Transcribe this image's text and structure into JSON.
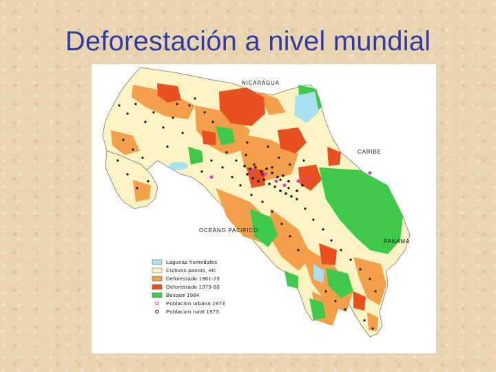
{
  "slide": {
    "title": "Deforestación a nivel mundial"
  },
  "map": {
    "labels": {
      "north": "NICARAGUA",
      "east": "CARIBE",
      "southwest": "OCEANO PACIFICO",
      "southeast": "PANAMA"
    },
    "legend": [
      {
        "label": "Lagunas humedales",
        "color": "#a8e0f0",
        "kind": "swatch"
      },
      {
        "label": "Cultivos pastos, etc",
        "color": "#fbf3c4",
        "kind": "swatch"
      },
      {
        "label": "Deforestado 1961-73",
        "color": "#f4a04a",
        "kind": "swatch"
      },
      {
        "label": "Deforestado 1973-83",
        "color": "#e8501f",
        "kind": "swatch"
      },
      {
        "label": "Bosque 1984",
        "color": "#3ec94a",
        "kind": "swatch"
      },
      {
        "label": "Poblacion urbana 1973",
        "color": "#d23bd2",
        "kind": "dot"
      },
      {
        "label": "Poblacion rural 1973",
        "color": "#111111",
        "kind": "dot"
      }
    ]
  }
}
